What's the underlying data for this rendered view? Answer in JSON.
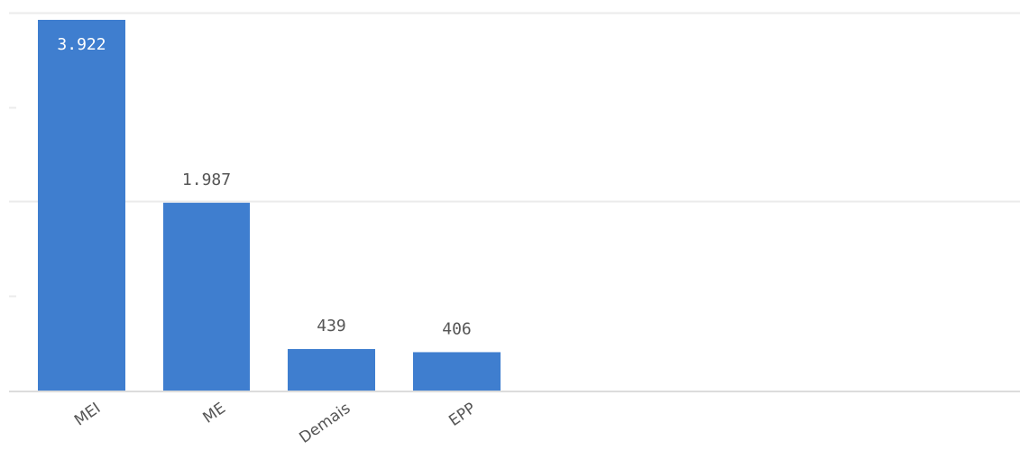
{
  "chart_data": {
    "type": "bar",
    "categories": [
      "MEI",
      "ME",
      "Demais",
      "EPP"
    ],
    "values": [
      3922,
      1987,
      439,
      406
    ],
    "value_labels": [
      "3.922",
      "1.987",
      "439",
      "406"
    ],
    "ylim": [
      0,
      4000
    ],
    "grid": true,
    "colors": {
      "bar": "#3f7ecf",
      "gridline": "#ebebeb",
      "axis": "#dcdcdc",
      "label_inside": "#ffffff",
      "label_outside": "#555555"
    }
  }
}
